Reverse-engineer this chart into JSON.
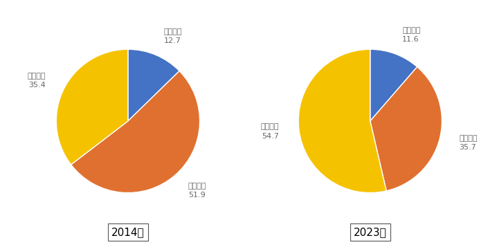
{
  "chart1": {
    "year": "2014年",
    "labels": [
      "第一产业",
      "第二产业",
      "第三产业"
    ],
    "values": [
      12.7,
      51.9,
      35.4
    ],
    "label_values": [
      "12.7",
      "51.9",
      "35.4"
    ]
  },
  "chart2": {
    "year": "2023年",
    "labels": [
      "第一产业",
      "第二产业",
      "第三产业"
    ],
    "values": [
      11.6,
      35.7,
      54.7
    ],
    "label_values": [
      "11.6",
      "35.7",
      "54.7"
    ]
  },
  "colors": {
    "第一产业": "#4472C4",
    "第二产业": "#E07030",
    "第三产业": "#F5C200"
  },
  "background_color": "#FFFFFF",
  "label_fontsize": 8.0,
  "year_fontsize": 11,
  "year_box_color": "#FFFFFF",
  "year_box_edgecolor": "#555555"
}
